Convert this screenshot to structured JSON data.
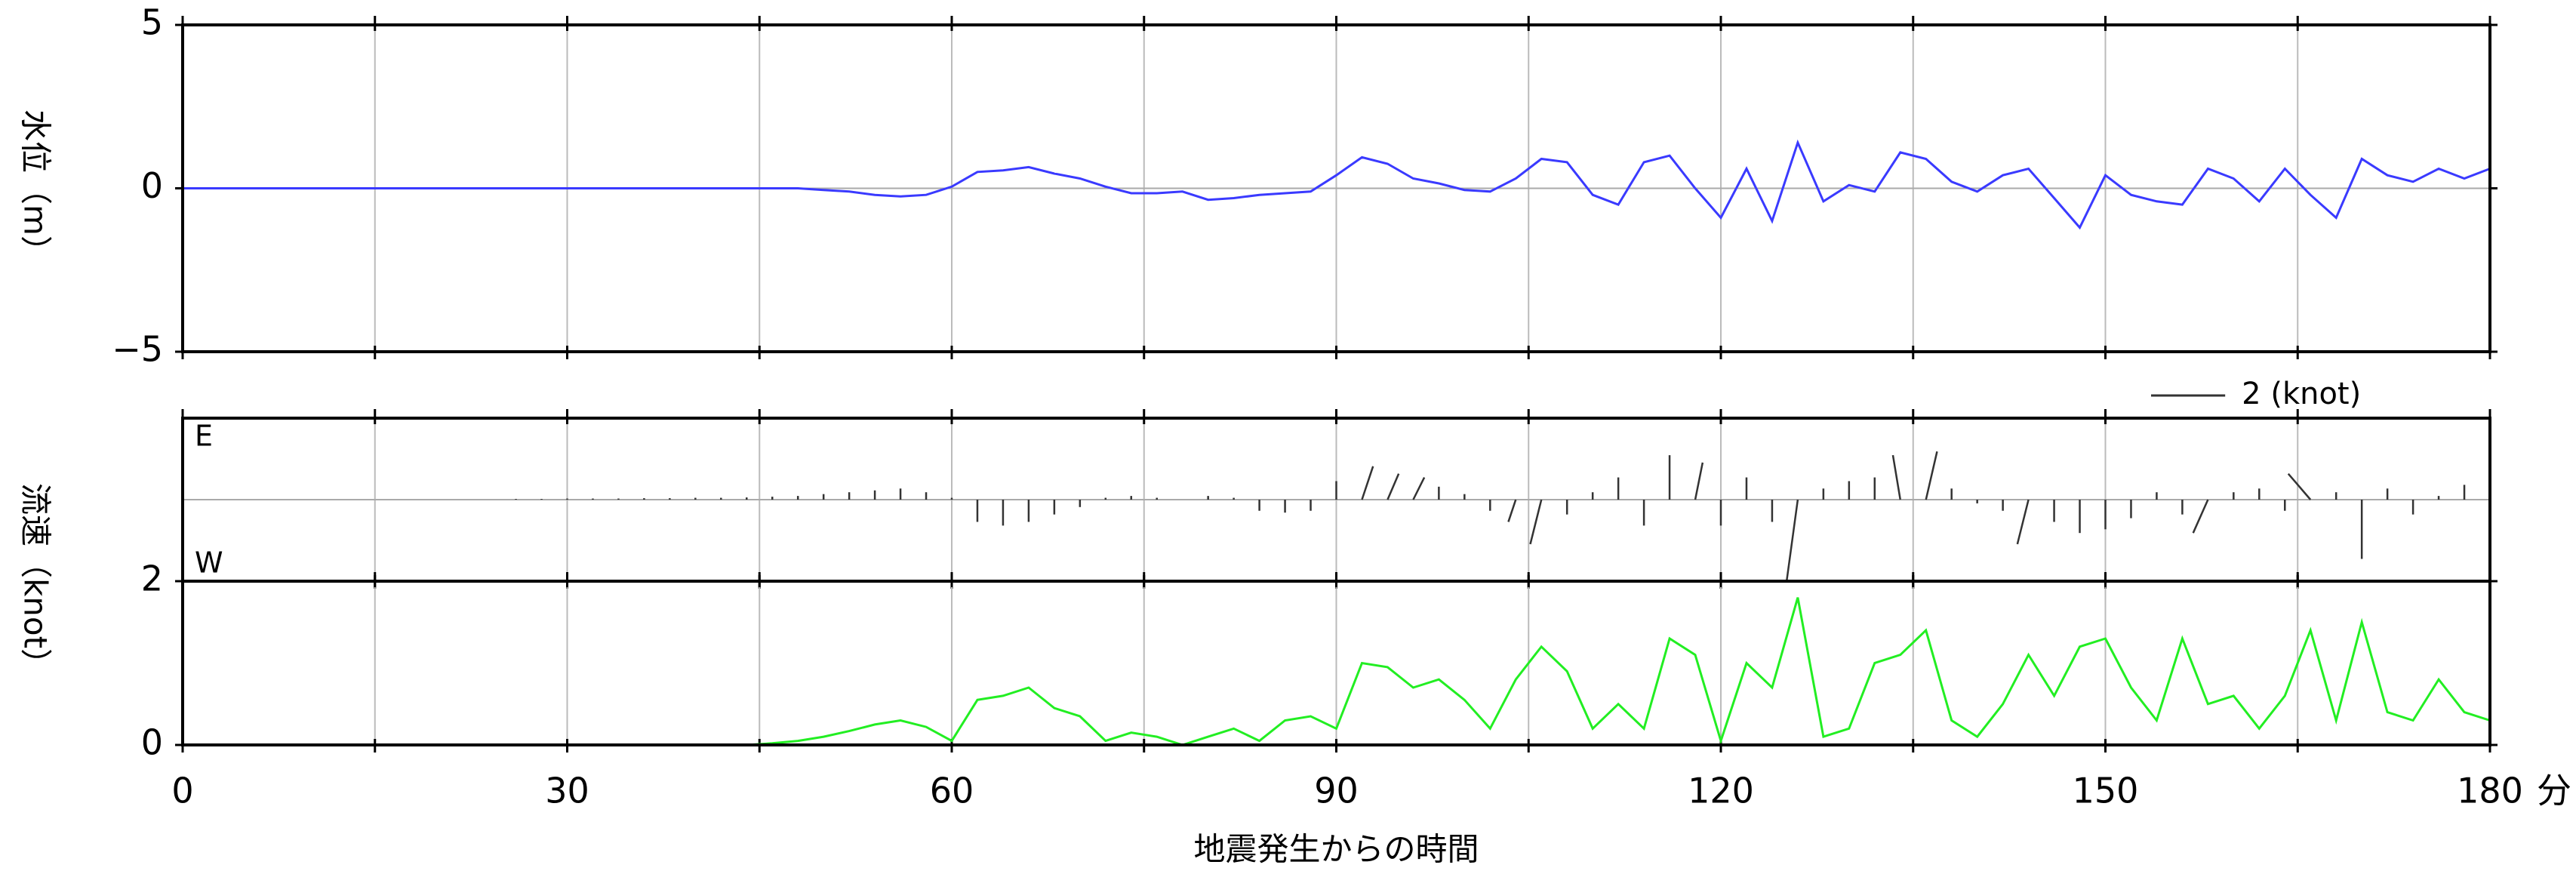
{
  "chart_data": [
    {
      "type": "line",
      "ylabel": "水位（m）",
      "color": "#3a3aff",
      "xlim": [
        0,
        180
      ],
      "xticks": [
        0,
        30,
        60,
        90,
        120,
        150,
        180
      ],
      "xminor": [
        15,
        45,
        75,
        105,
        135,
        165
      ],
      "ylim": [
        -5,
        5
      ],
      "yticks": [
        5,
        0,
        {
          "value": -5,
          "label": "−5"
        }
      ],
      "grid": true,
      "x": [
        0,
        2,
        4,
        6,
        8,
        10,
        12,
        14,
        16,
        18,
        20,
        22,
        24,
        26,
        28,
        30,
        32,
        34,
        36,
        38,
        40,
        42,
        44,
        46,
        48,
        50,
        52,
        54,
        56,
        58,
        60,
        62,
        64,
        66,
        68,
        70,
        72,
        74,
        76,
        78,
        80,
        82,
        84,
        86,
        88,
        90,
        92,
        94,
        96,
        98,
        100,
        102,
        104,
        106,
        108,
        110,
        112,
        114,
        116,
        118,
        120,
        122,
        124,
        126,
        128,
        130,
        132,
        134,
        136,
        138,
        140,
        142,
        144,
        146,
        148,
        150,
        152,
        154,
        156,
        158,
        160,
        162,
        164,
        166,
        168,
        170,
        172,
        174,
        176,
        178,
        180
      ],
      "values": [
        0,
        0,
        0,
        0,
        0,
        0,
        0,
        0,
        0,
        0,
        0,
        0,
        0,
        0,
        0,
        0,
        0,
        0,
        0,
        0,
        0,
        0,
        0,
        0,
        0,
        -0.05,
        -0.1,
        -0.2,
        -0.25,
        -0.2,
        0.05,
        0.5,
        0.55,
        0.65,
        0.45,
        0.3,
        0.05,
        -0.15,
        -0.15,
        -0.1,
        -0.35,
        -0.3,
        -0.2,
        -0.15,
        -0.1,
        0.4,
        0.95,
        0.75,
        0.3,
        0.15,
        -0.05,
        -0.1,
        0.3,
        0.9,
        0.8,
        -0.2,
        -0.5,
        0.8,
        1.0,
        0.0,
        -0.9,
        0.6,
        -1.0,
        1.4,
        -0.4,
        0.1,
        -0.1,
        1.1,
        0.9,
        0.2,
        -0.1,
        0.4,
        0.6,
        -0.3,
        -1.2,
        0.4,
        -0.2,
        -0.4,
        -0.5,
        0.6,
        0.3,
        -0.4,
        0.6,
        -0.2,
        -0.9,
        0.9,
        0.4,
        0.2,
        0.6,
        0.3,
        0.6
      ]
    },
    {
      "type": "stick",
      "color": "#333333",
      "top_label": "E",
      "bottom_label": "W",
      "label_color": "#e8337f",
      "scale_label": "2 (knot)",
      "scale_knots": 2,
      "xlim": [
        0,
        180
      ],
      "xticks": [
        0,
        30,
        60,
        90,
        120,
        150,
        180
      ],
      "xminor": [
        15,
        45,
        75,
        105,
        135,
        165
      ],
      "ylim": [
        -2.2,
        2.2
      ],
      "x": [
        26,
        28,
        30,
        32,
        34,
        36,
        38,
        40,
        42,
        44,
        46,
        48,
        50,
        52,
        54,
        56,
        58,
        60,
        62,
        64,
        66,
        68,
        70,
        72,
        74,
        76,
        78,
        80,
        82,
        84,
        86,
        88,
        90,
        92,
        94,
        96,
        98,
        100,
        102,
        104,
        106,
        108,
        110,
        112,
        114,
        116,
        118,
        120,
        122,
        124,
        126,
        128,
        130,
        132,
        134,
        136,
        138,
        140,
        142,
        144,
        146,
        148,
        150,
        152,
        154,
        156,
        158,
        160,
        162,
        164,
        166,
        168,
        170,
        172,
        174,
        176,
        178,
        180
      ],
      "u": [
        0,
        0,
        0,
        0,
        0,
        0,
        0,
        0,
        0,
        0,
        0,
        0,
        0,
        0,
        0,
        0,
        0,
        0,
        0,
        0,
        0,
        0,
        0,
        0,
        0,
        0,
        0,
        0,
        0,
        0,
        0,
        0,
        0,
        0.3,
        0.3,
        0.3,
        0,
        0,
        0,
        -0.2,
        -0.3,
        0,
        0,
        0,
        0,
        0,
        0.2,
        0,
        0,
        0,
        -0.3,
        0,
        0,
        0,
        -0.2,
        0.3,
        0,
        0,
        0,
        -0.3,
        0,
        0,
        0,
        0,
        0,
        0,
        -0.4,
        0,
        0,
        0,
        -0.6,
        0,
        0,
        0,
        0,
        0,
        0,
        0
      ],
      "v": [
        0.02,
        0.02,
        0.03,
        0.03,
        0.03,
        0.04,
        0.04,
        0.05,
        0.05,
        0.06,
        0.08,
        0.1,
        0.15,
        0.2,
        0.25,
        0.3,
        0.2,
        0.05,
        -0.6,
        -0.7,
        -0.6,
        -0.4,
        -0.2,
        0.05,
        0.1,
        0.05,
        0,
        0.1,
        0.05,
        -0.3,
        -0.35,
        -0.3,
        0.5,
        0.9,
        0.7,
        0.6,
        0.35,
        0.15,
        -0.3,
        -0.6,
        -1.2,
        -0.4,
        0.2,
        0.6,
        -0.7,
        1.2,
        1.0,
        -0.7,
        0.6,
        -0.6,
        -2.2,
        0.3,
        0.5,
        0.6,
        1.2,
        1.3,
        0.3,
        -0.1,
        -0.3,
        -1.2,
        -0.6,
        -0.9,
        -0.8,
        -0.5,
        0.2,
        -0.4,
        -0.9,
        0.2,
        0.3,
        -0.3,
        0.7,
        0.2,
        -1.6,
        0.3,
        -0.4,
        0.1,
        0.4,
        0.2
      ]
    },
    {
      "type": "line",
      "ylabel": "流速（knot）",
      "xlabel": "地震発生からの時間",
      "xunit": "分",
      "color": "#22ee22",
      "xlim": [
        0,
        180
      ],
      "xticks": [
        0,
        30,
        60,
        90,
        120,
        150,
        180
      ],
      "xminor": [
        15,
        45,
        75,
        105,
        135,
        165
      ],
      "ylim": [
        0,
        2
      ],
      "yticks": [
        2,
        0
      ],
      "grid": false,
      "x": [
        0,
        2,
        4,
        6,
        8,
        10,
        12,
        14,
        16,
        18,
        20,
        22,
        24,
        26,
        28,
        30,
        32,
        34,
        36,
        38,
        40,
        42,
        44,
        46,
        48,
        50,
        52,
        54,
        56,
        58,
        60,
        62,
        64,
        66,
        68,
        70,
        72,
        74,
        76,
        78,
        80,
        82,
        84,
        86,
        88,
        90,
        92,
        94,
        96,
        98,
        100,
        102,
        104,
        106,
        108,
        110,
        112,
        114,
        116,
        118,
        120,
        122,
        124,
        126,
        128,
        130,
        132,
        134,
        136,
        138,
        140,
        142,
        144,
        146,
        148,
        150,
        152,
        154,
        156,
        158,
        160,
        162,
        164,
        166,
        168,
        170,
        172,
        174,
        176,
        178,
        180
      ],
      "values": [
        0,
        0,
        0,
        0,
        0,
        0,
        0,
        0,
        0,
        0,
        0,
        0,
        0,
        0,
        0,
        0,
        0,
        0,
        0,
        0,
        0,
        0,
        0,
        0.02,
        0.05,
        0.1,
        0.17,
        0.25,
        0.3,
        0.22,
        0.05,
        0.55,
        0.6,
        0.7,
        0.45,
        0.35,
        0.05,
        0.15,
        0.1,
        0.0,
        0.1,
        0.2,
        0.05,
        0.3,
        0.35,
        0.2,
        1.0,
        0.95,
        0.7,
        0.8,
        0.55,
        0.2,
        0.8,
        1.2,
        0.9,
        0.2,
        0.5,
        0.2,
        1.3,
        1.1,
        0.05,
        1.0,
        0.7,
        1.8,
        0.1,
        0.2,
        1.0,
        1.1,
        1.4,
        0.3,
        0.1,
        0.5,
        1.1,
        0.6,
        1.2,
        1.3,
        0.7,
        0.3,
        1.3,
        0.5,
        0.6,
        0.2,
        0.6,
        1.4,
        0.3,
        1.5,
        0.4,
        0.3,
        0.8,
        0.4,
        0.3
      ]
    }
  ]
}
